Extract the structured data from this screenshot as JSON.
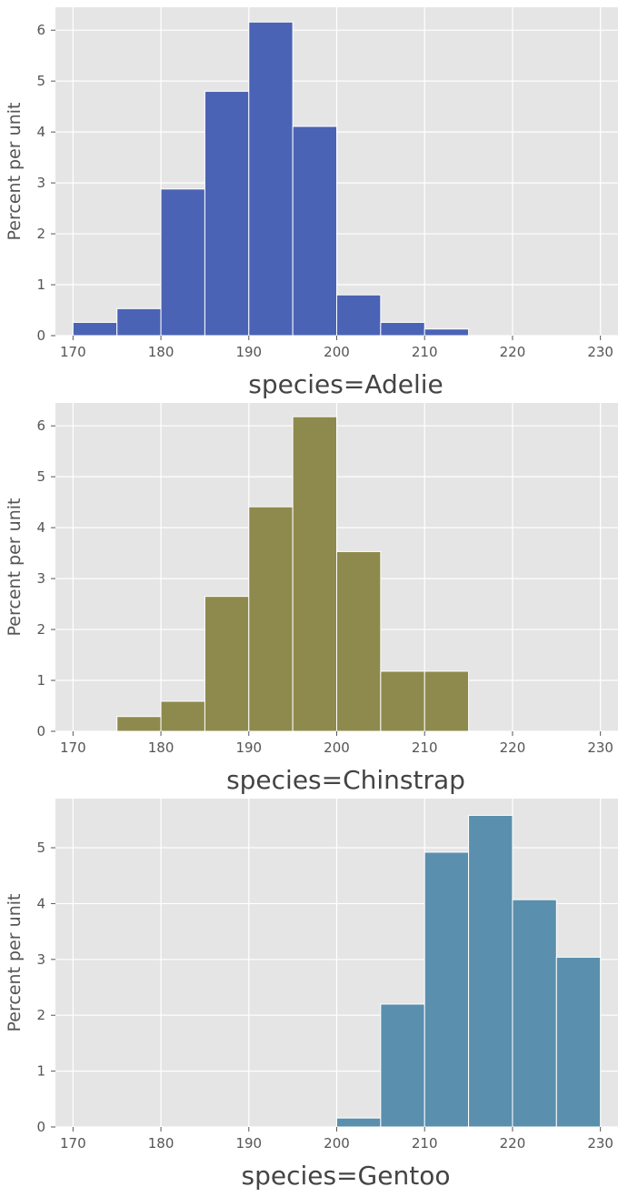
{
  "chart_data": [
    {
      "type": "bar",
      "xlabel": "species=Adelie",
      "ylabel": "Percent per unit",
      "bin_edges": [
        170,
        175,
        180,
        185,
        190,
        195,
        200,
        205,
        210,
        215,
        220,
        225,
        230
      ],
      "values": [
        0.26,
        0.53,
        2.88,
        4.8,
        6.16,
        4.11,
        0.8,
        0.26,
        0.13,
        0,
        0,
        0
      ],
      "color": "#4b63b5",
      "xlim": [
        168,
        232
      ],
      "ylim": [
        0,
        6.45
      ],
      "xticks": [
        170,
        180,
        190,
        200,
        210,
        220,
        230
      ],
      "yticks": [
        0,
        1,
        2,
        3,
        4,
        5,
        6
      ],
      "grid": true
    },
    {
      "type": "bar",
      "xlabel": "species=Chinstrap",
      "ylabel": "Percent per unit",
      "bin_edges": [
        170,
        175,
        180,
        185,
        190,
        195,
        200,
        205,
        210,
        215,
        220,
        225,
        230
      ],
      "values": [
        0,
        0.29,
        0.59,
        2.65,
        4.41,
        6.18,
        3.53,
        1.18,
        1.18,
        0,
        0,
        0
      ],
      "color": "#8e8a4d",
      "xlim": [
        168,
        232
      ],
      "ylim": [
        0,
        6.45
      ],
      "xticks": [
        170,
        180,
        190,
        200,
        210,
        220,
        230
      ],
      "yticks": [
        0,
        1,
        2,
        3,
        4,
        5,
        6
      ],
      "grid": true
    },
    {
      "type": "bar",
      "xlabel": "species=Gentoo",
      "ylabel": "Percent per unit",
      "bin_edges": [
        170,
        175,
        180,
        185,
        190,
        195,
        200,
        205,
        210,
        215,
        220,
        225,
        230
      ],
      "values": [
        0,
        0,
        0,
        0,
        0,
        0,
        0.16,
        2.2,
        4.92,
        5.58,
        4.07,
        3.04
      ],
      "color": "#5a8fad",
      "xlim": [
        168,
        232
      ],
      "ylim": [
        0,
        5.88
      ],
      "xticks": [
        170,
        180,
        190,
        200,
        210,
        220,
        230
      ],
      "yticks": [
        0,
        1,
        2,
        3,
        4,
        5
      ],
      "grid": true
    }
  ]
}
